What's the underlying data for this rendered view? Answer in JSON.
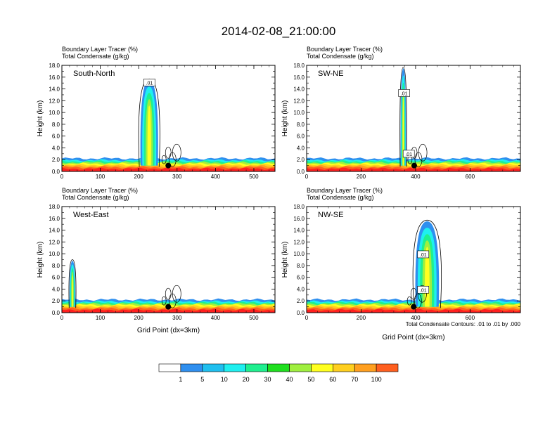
{
  "title": "2014-02-08_21:00:00",
  "colors": {
    "levels": [
      "#ffffff",
      "#2f8fef",
      "#1fbfef",
      "#1fefef",
      "#1fef8f",
      "#1fdf1f",
      "#9fef3f",
      "#ffff1f",
      "#ffcf1f",
      "#ff9f1f",
      "#ff5f1f",
      "#ff1f1f"
    ]
  },
  "colorbar": {
    "labels": [
      "1",
      "5",
      "10",
      "20",
      "30",
      "40",
      "50",
      "60",
      "70",
      "100"
    ]
  },
  "chart_data": [
    {
      "type": "heatmap",
      "id": "south-north",
      "subtitle1": "Boundary Layer Tracer   (%)",
      "subtitle2": "Total Condensate   (g/kg)",
      "label": "South-North",
      "ylabel": "Height (km)",
      "xlabel": "",
      "ylim": [
        0,
        18
      ],
      "xlim": [
        0,
        555
      ],
      "xticks": [
        0,
        100,
        200,
        300,
        400,
        500
      ],
      "yticks": [
        0,
        2,
        4,
        6,
        8,
        10,
        12,
        14,
        16,
        18
      ],
      "ytick_labels": [
        "0.0",
        "2.0",
        "4.0",
        "6.0",
        "8.0",
        "10.0",
        "12.0",
        "14.0",
        "16.0",
        "18.0"
      ],
      "contour_labels": [
        {
          "x": 228,
          "y": 15.1,
          "text": ".01"
        }
      ],
      "column": {
        "x": [
          205,
          250
        ],
        "top": 15.5
      },
      "marker": {
        "x": 277,
        "y": 1.0
      }
    },
    {
      "type": "heatmap",
      "id": "sw-ne",
      "subtitle1": "Boundary Layer Tracer   (%)",
      "subtitle2": "Total Condensate   (g/kg)",
      "label": "SW-NE",
      "ylabel": "Height (km)",
      "xlabel": "",
      "ylim": [
        0,
        18
      ],
      "xlim": [
        0,
        785
      ],
      "xticks": [
        0,
        200,
        400,
        600
      ],
      "yticks": [
        0,
        2,
        4,
        6,
        8,
        10,
        12,
        14,
        16,
        18
      ],
      "ytick_labels": [
        "0.0",
        "2.0",
        "4.0",
        "6.0",
        "8.0",
        "10.0",
        "12.0",
        "14.0",
        "16.0",
        "18.0"
      ],
      "contour_labels": [
        {
          "x": 358,
          "y": 13.3,
          "text": ".01"
        },
        {
          "x": 375,
          "y": 3.0,
          "text": ".01"
        }
      ],
      "column": {
        "x": [
          345,
          365
        ],
        "top": 17.5
      },
      "marker": {
        "x": 395,
        "y": 1.0
      }
    },
    {
      "type": "heatmap",
      "id": "west-east",
      "subtitle1": "Boundary Layer Tracer   (%)",
      "subtitle2": "Total Condensate   (g/kg)",
      "label": "West-East",
      "ylabel": "Height (km)",
      "xlabel": "Grid Point (dx=3km)",
      "ylim": [
        0,
        18
      ],
      "xlim": [
        0,
        555
      ],
      "xticks": [
        0,
        100,
        200,
        300,
        400,
        500
      ],
      "yticks": [
        0,
        2,
        4,
        6,
        8,
        10,
        12,
        14,
        16,
        18
      ],
      "ytick_labels": [
        "0.0",
        "2.0",
        "4.0",
        "6.0",
        "8.0",
        "10.0",
        "12.0",
        "14.0",
        "16.0",
        "18.0"
      ],
      "contour_labels": [],
      "column": {
        "x": [
          20,
          35
        ],
        "top": 8.8
      },
      "marker": {
        "x": 277,
        "y": 1.0
      }
    },
    {
      "type": "heatmap",
      "id": "nw-se",
      "subtitle1": "Boundary Layer Tracer   (%)",
      "subtitle2": "Total Condensate   (g/kg)",
      "label": "NW-SE",
      "ylabel": "Height (km)",
      "xlabel": "Grid Point (dx=3km)",
      "ylim": [
        0,
        18
      ],
      "xlim": [
        0,
        785
      ],
      "xticks": [
        0,
        200,
        400,
        600
      ],
      "yticks": [
        0,
        2,
        4,
        6,
        8,
        10,
        12,
        14,
        16,
        18
      ],
      "ytick_labels": [
        "0.0",
        "2.0",
        "4.0",
        "6.0",
        "8.0",
        "10.0",
        "12.0",
        "14.0",
        "16.0",
        "18.0"
      ],
      "contour_labels": [
        {
          "x": 428,
          "y": 9.9,
          "text": ".01"
        },
        {
          "x": 428,
          "y": 3.9,
          "text": ".01"
        }
      ],
      "column": {
        "x": [
          400,
          485
        ],
        "top": 15.5
      },
      "marker": {
        "x": 393,
        "y": 1.0
      },
      "footnote": "Total Condensate Contours: .01 to .01 by .000"
    }
  ]
}
